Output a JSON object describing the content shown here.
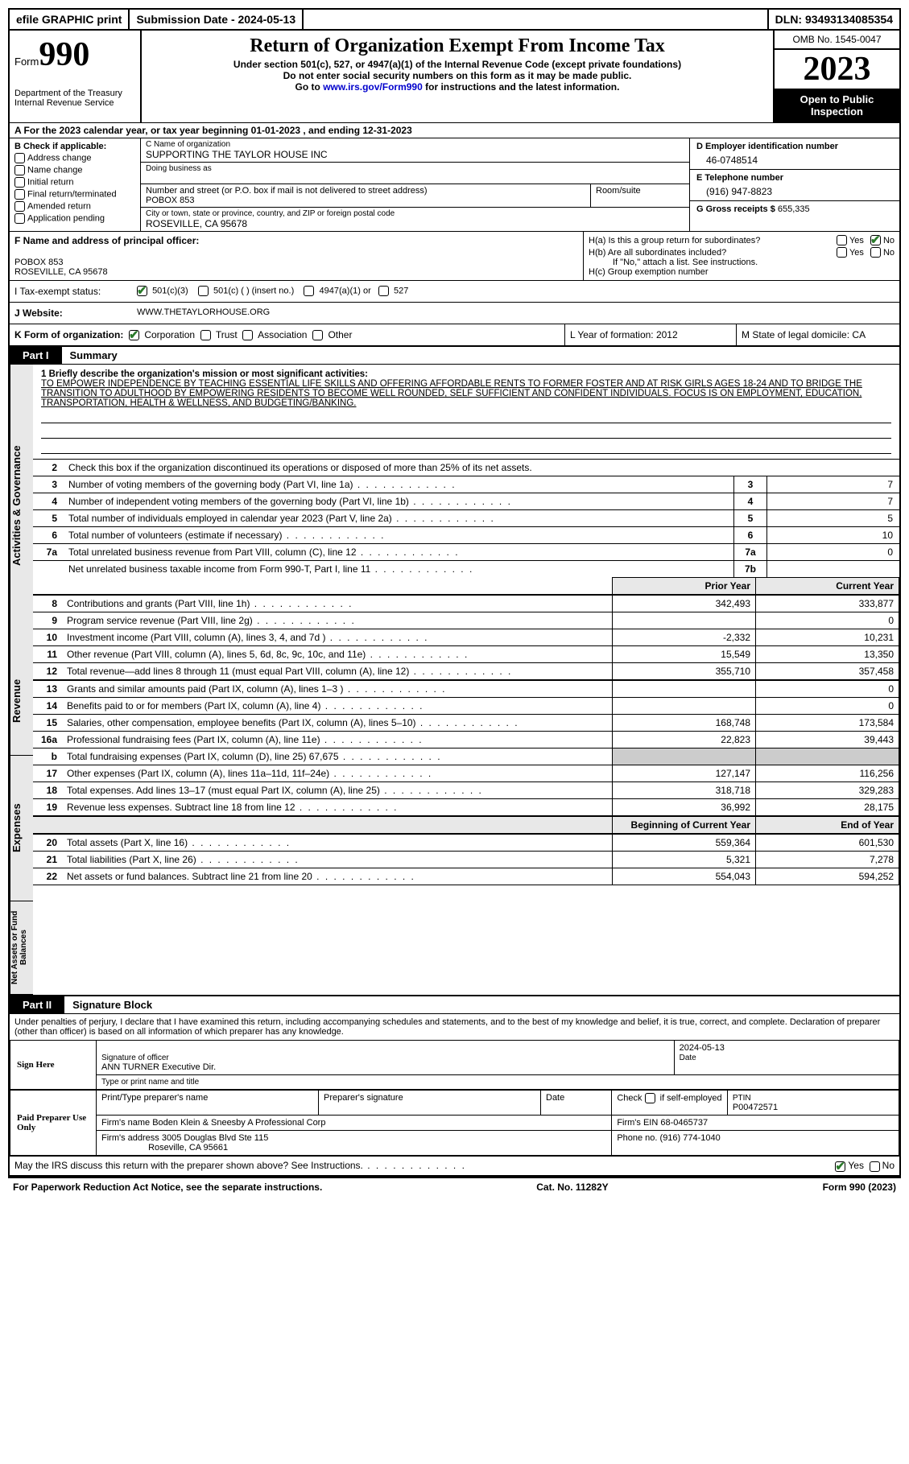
{
  "topbar": {
    "efile": "efile GRAPHIC print",
    "sub_label": "Submission Date - 2024-05-13",
    "dln": "DLN: 93493134085354"
  },
  "header": {
    "form_prefix": "Form",
    "form_num": "990",
    "dept": "Department of the Treasury Internal Revenue Service",
    "title": "Return of Organization Exempt From Income Tax",
    "sub1": "Under section 501(c), 527, or 4947(a)(1) of the Internal Revenue Code (except private foundations)",
    "sub2": "Do not enter social security numbers on this form as it may be made public.",
    "sub3_pre": "Go to ",
    "sub3_link": "www.irs.gov/Form990",
    "sub3_post": " for instructions and the latest information.",
    "omb": "OMB No. 1545-0047",
    "year": "2023",
    "inspection": "Open to Public Inspection"
  },
  "row_a": "A  For the 2023 calendar year, or tax year beginning 01-01-2023   , and ending 12-31-2023",
  "col_b": {
    "hdr": "B Check if applicable:",
    "c1": "Address change",
    "c2": "Name change",
    "c3": "Initial return",
    "c4": "Final return/terminated",
    "c5": "Amended return",
    "c6": "Application pending"
  },
  "col_c": {
    "name_lbl": "C Name of organization",
    "name": "SUPPORTING THE TAYLOR HOUSE INC",
    "dba_lbl": "Doing business as",
    "dba": "",
    "addr_lbl": "Number and street (or P.O. box if mail is not delivered to street address)",
    "addr": "POBOX 853",
    "room_lbl": "Room/suite",
    "room": "",
    "city_lbl": "City or town, state or province, country, and ZIP or foreign postal code",
    "city": "ROSEVILLE, CA  95678"
  },
  "col_d": {
    "ein_lbl": "D Employer identification number",
    "ein": "46-0748514",
    "tel_lbl": "E Telephone number",
    "tel": "(916) 947-8823",
    "gross_lbl": "G Gross receipts $",
    "gross": "655,335"
  },
  "col_f": {
    "lbl": "F  Name and address of principal officer:",
    "line1": "",
    "line2": "POBOX 853",
    "line3": "ROSEVILLE, CA  95678"
  },
  "col_h": {
    "a": "H(a)  Is this a group return for subordinates?",
    "b": "H(b)  Are all subordinates included?",
    "b_note": "If \"No,\" attach a list. See instructions.",
    "c": "H(c)  Group exemption number  "
  },
  "row_i": {
    "lbl": "I  Tax-exempt status:",
    "o1": "501(c)(3)",
    "o2": "501(c) (  ) (insert no.)",
    "o3": "4947(a)(1) or",
    "o4": "527"
  },
  "row_j": {
    "lbl": "J  Website:  ",
    "val": "WWW.THETAYLORHOUSE.ORG"
  },
  "row_k": {
    "lbl": "K Form of organization:",
    "o1": "Corporation",
    "o2": "Trust",
    "o3": "Association",
    "o4": "Other",
    "l": "L Year of formation: 2012",
    "m": "M State of legal domicile: CA"
  },
  "part1": {
    "tab": "Part I",
    "title": "Summary",
    "vtab1": "Activities & Governance",
    "vtab2": "Revenue",
    "vtab3": "Expenses",
    "vtab4": "Net Assets or Fund Balances",
    "l1_lbl": "1  Briefly describe the organization's mission or most significant activities:",
    "l1_val": "TO EMPOWER INDEPENDENCE BY TEACHING ESSENTIAL LIFE SKILLS AND OFFERING AFFORDABLE RENTS TO FORMER FOSTER AND AT RISK GIRLS AGES 18-24 AND TO BRIDGE THE TRANSITION TO ADULTHOOD BY EMPOWERING RESIDENTS TO BECOME WELL ROUNDED, SELF SUFFICIENT AND CONFIDENT INDIVIDUALS. FOCUS IS ON EMPLOYMENT, EDUCATION, TRANSPORTATION, HEALTH & WELLNESS, AND BUDGETING/BANKING.",
    "l2": "Check this box        if the organization discontinued its operations or disposed of more than 25% of its net assets.",
    "rows": [
      {
        "n": "3",
        "d": "Number of voting members of the governing body (Part VI, line 1a)",
        "box": "3",
        "v": "7"
      },
      {
        "n": "4",
        "d": "Number of independent voting members of the governing body (Part VI, line 1b)",
        "box": "4",
        "v": "7"
      },
      {
        "n": "5",
        "d": "Total number of individuals employed in calendar year 2023 (Part V, line 2a)",
        "box": "5",
        "v": "5"
      },
      {
        "n": "6",
        "d": "Total number of volunteers (estimate if necessary)",
        "box": "6",
        "v": "10"
      },
      {
        "n": "7a",
        "d": "Total unrelated business revenue from Part VIII, column (C), line 12",
        "box": "7a",
        "v": "0"
      },
      {
        "n": "",
        "d": "Net unrelated business taxable income from Form 990-T, Part I, line 11",
        "box": "7b",
        "v": ""
      }
    ],
    "py_hdr": "Prior Year",
    "cy_hdr": "Current Year",
    "rev": [
      {
        "n": "8",
        "d": "Contributions and grants (Part VIII, line 1h)",
        "p": "342,493",
        "c": "333,877"
      },
      {
        "n": "9",
        "d": "Program service revenue (Part VIII, line 2g)",
        "p": "",
        "c": "0"
      },
      {
        "n": "10",
        "d": "Investment income (Part VIII, column (A), lines 3, 4, and 7d )",
        "p": "-2,332",
        "c": "10,231"
      },
      {
        "n": "11",
        "d": "Other revenue (Part VIII, column (A), lines 5, 6d, 8c, 9c, 10c, and 11e)",
        "p": "15,549",
        "c": "13,350"
      },
      {
        "n": "12",
        "d": "Total revenue—add lines 8 through 11 (must equal Part VIII, column (A), line 12)",
        "p": "355,710",
        "c": "357,458"
      }
    ],
    "exp": [
      {
        "n": "13",
        "d": "Grants and similar amounts paid (Part IX, column (A), lines 1–3 )",
        "p": "",
        "c": "0"
      },
      {
        "n": "14",
        "d": "Benefits paid to or for members (Part IX, column (A), line 4)",
        "p": "",
        "c": "0"
      },
      {
        "n": "15",
        "d": "Salaries, other compensation, employee benefits (Part IX, column (A), lines 5–10)",
        "p": "168,748",
        "c": "173,584"
      },
      {
        "n": "16a",
        "d": "Professional fundraising fees (Part IX, column (A), line 11e)",
        "p": "22,823",
        "c": "39,443"
      },
      {
        "n": "b",
        "d": "Total fundraising expenses (Part IX, column (D), line 25) 67,675",
        "p": "SHADE",
        "c": "SHADE"
      },
      {
        "n": "17",
        "d": "Other expenses (Part IX, column (A), lines 11a–11d, 11f–24e)",
        "p": "127,147",
        "c": "116,256"
      },
      {
        "n": "18",
        "d": "Total expenses. Add lines 13–17 (must equal Part IX, column (A), line 25)",
        "p": "318,718",
        "c": "329,283"
      },
      {
        "n": "19",
        "d": "Revenue less expenses. Subtract line 18 from line 12",
        "p": "36,992",
        "c": "28,175"
      }
    ],
    "bcy_hdr": "Beginning of Current Year",
    "eoy_hdr": "End of Year",
    "net": [
      {
        "n": "20",
        "d": "Total assets (Part X, line 16)",
        "p": "559,364",
        "c": "601,530"
      },
      {
        "n": "21",
        "d": "Total liabilities (Part X, line 26)",
        "p": "5,321",
        "c": "7,278"
      },
      {
        "n": "22",
        "d": "Net assets or fund balances. Subtract line 21 from line 20",
        "p": "554,043",
        "c": "594,252"
      }
    ]
  },
  "part2": {
    "tab": "Part II",
    "title": "Signature Block",
    "decl": "Under penalties of perjury, I declare that I have examined this return, including accompanying schedules and statements, and to the best of my knowledge and belief, it is true, correct, and complete. Declaration of preparer (other than officer) is based on all information of which preparer has any knowledge."
  },
  "sign": {
    "here": "Sign Here",
    "date": "2024-05-13",
    "sig_lbl": "Signature of officer",
    "name": "ANN TURNER  Executive Dir.",
    "name_lbl": "Type or print name and title",
    "date_lbl": "Date"
  },
  "paid": {
    "here": "Paid Preparer Use Only",
    "c1": "Print/Type preparer's name",
    "c2": "Preparer's signature",
    "c3": "Date",
    "c4_pre": "Check ",
    "c4_post": " if self-employed",
    "c5_lbl": "PTIN",
    "c5": "P00472571",
    "firm_lbl": "Firm's name      ",
    "firm": "Boden Klein & Sneesby A Professional Corp",
    "ein_lbl": "Firm's EIN  ",
    "ein": "68-0465737",
    "addr_lbl": "Firm's address ",
    "addr1": "3005 Douglas Blvd Ste 115",
    "addr2": "Roseville, CA  95661",
    "ph_lbl": "Phone no. ",
    "ph": "(916) 774-1040"
  },
  "footer": {
    "q": "May the IRS discuss this return with the preparer shown above? See Instructions.",
    "yes": "Yes",
    "no": "No",
    "pra": "For Paperwork Reduction Act Notice, see the separate instructions.",
    "cat": "Cat. No. 11282Y",
    "form": "Form 990 (2023)"
  }
}
